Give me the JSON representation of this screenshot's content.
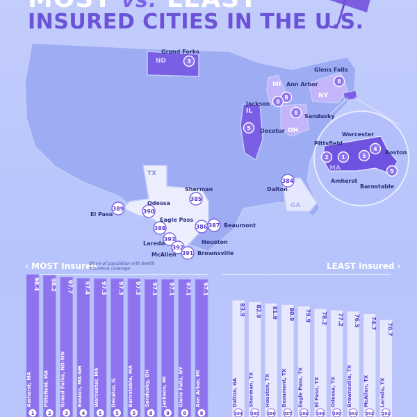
{
  "header": {
    "title_part1": "MOST",
    "title_vs": "vs.",
    "title_part2": "LEAST",
    "title_line2": "INSURED CITIES IN THE U.S."
  },
  "map": {
    "state_labels": [
      "ND",
      "MI",
      "NY",
      "IL",
      "OH",
      "TX",
      "GA",
      "MA"
    ],
    "cities": [
      {
        "name": "Grand Forks",
        "rank": "3",
        "group": "most"
      },
      {
        "name": "Glens Falls",
        "rank": "8",
        "group": "most"
      },
      {
        "name": "Ann Arbor",
        "rank": "8",
        "group": "most"
      },
      {
        "name": "Jackson",
        "rank": "8",
        "group": "most"
      },
      {
        "name": "Sandusky",
        "rank": "8",
        "group": "most"
      },
      {
        "name": "Decatur",
        "rank": "5",
        "group": "most"
      },
      {
        "name": "Worcester",
        "rank": "5",
        "group": "most"
      },
      {
        "name": "Pittsfield",
        "rank": "2",
        "group": "most"
      },
      {
        "name": "Amherst",
        "rank": "1",
        "group": "most"
      },
      {
        "name": "Boston",
        "rank": "4",
        "group": "most"
      },
      {
        "name": "Barnstable",
        "rank": "5",
        "group": "most"
      },
      {
        "name": "Dalton",
        "rank": "384",
        "group": "least"
      },
      {
        "name": "Sherman",
        "rank": "385",
        "group": "least"
      },
      {
        "name": "Odessa",
        "rank": "390",
        "group": "least"
      },
      {
        "name": "El Paso",
        "rank": "389",
        "group": "least"
      },
      {
        "name": "Eagle Pass",
        "rank": "388",
        "group": "least"
      },
      {
        "name": "Beaumont",
        "rank": "387",
        "group": "least"
      },
      {
        "name": "Houston",
        "rank": "386",
        "group": "least"
      },
      {
        "name": "Laredo",
        "rank": "393",
        "group": "least"
      },
      {
        "name": "McAllen",
        "rank": "392",
        "group": "least"
      },
      {
        "name": "Brownsville",
        "rank": "391",
        "group": "least"
      }
    ]
  },
  "most_header": "‹ MOST Insured",
  "most_note": "Share of population with health insurance coverage",
  "least_header": "LEAST Insured ›",
  "colors": {
    "most_bar": "#8e73ef",
    "least_bar": "#e6e9fe",
    "title": "#6c52d6",
    "map_land": "#9aa8f2"
  },
  "chart_data": [
    {
      "type": "bar",
      "title": "MOST Insured",
      "categories": [
        "Amherst, MA",
        "Pittsfield, MA",
        "Grand Forks, ND-MN",
        "Boston, MA-NH",
        "Worcester, MA",
        "Decatur, IL",
        "Barnstable, MA",
        "Sandusky, OH",
        "Jackson, MI",
        "Glens Falls, NY",
        "Ann Arbor, MI"
      ],
      "values": [
        98.4,
        98.2,
        97.7,
        97.4,
        97.3,
        97.3,
        97.3,
        97.1,
        97.1,
        97.1,
        97.1
      ],
      "ranks": [
        "1",
        "2",
        "3",
        "4",
        "5",
        "5",
        "5",
        "8",
        "8",
        "8",
        "8"
      ]
    },
    {
      "type": "bar",
      "title": "LEAST Insured",
      "categories": [
        "Dalton, GA",
        "Sherman, TX",
        "Houston, TX",
        "Beaumont, TX",
        "Eagle Pass, TX",
        "El Paso, TX",
        "Odessa, TX",
        "Brownsville, TX",
        "McAllen, TX",
        "Laredo, TX"
      ],
      "values": [
        83.9,
        82.9,
        81.9,
        80.9,
        79.9,
        78.2,
        77.2,
        76.5,
        74.7,
        70.7
      ],
      "ranks": [
        "384",
        "385",
        "386",
        "387",
        "388",
        "389",
        "390",
        "391",
        "392",
        "393"
      ]
    }
  ]
}
